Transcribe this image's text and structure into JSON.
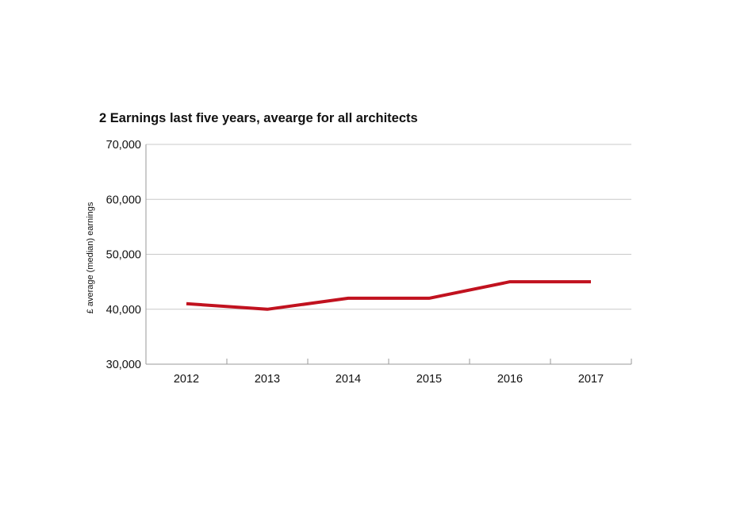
{
  "chart_data": {
    "type": "line",
    "title": "2 Earnings last five years, avearge for all architects",
    "xlabel": "",
    "ylabel": "£ average (median) earnings",
    "categories": [
      "2012",
      "2013",
      "2014",
      "2015",
      "2016",
      "2017"
    ],
    "series": [
      {
        "values": [
          41000,
          40000,
          42000,
          42000,
          45000,
          45000
        ]
      }
    ],
    "ylim": [
      30000,
      70000
    ],
    "yticks": [
      30000,
      40000,
      50000,
      60000,
      70000
    ],
    "ytick_labels": [
      "30,000",
      "40,000",
      "50,000",
      "60,000",
      "70,000"
    ],
    "grid": true,
    "legend": "none",
    "colors": {
      "line": "#c1121f",
      "grid": "#c8c8c8",
      "axis": "#9a9a9a"
    }
  }
}
